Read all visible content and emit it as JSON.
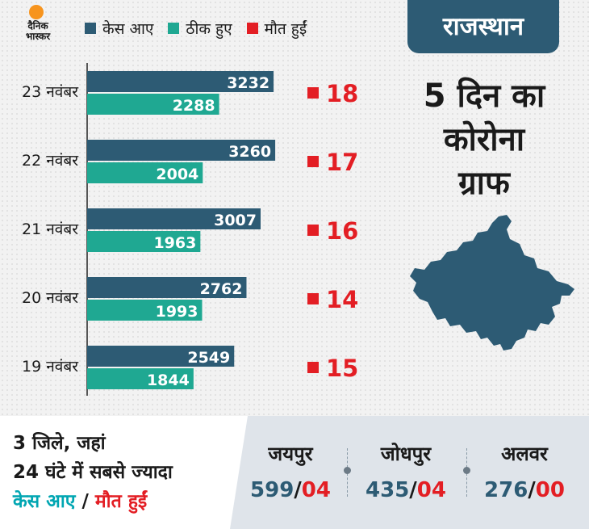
{
  "brand": {
    "logo_line1": "दैनिक",
    "logo_line2": "भास्कर"
  },
  "legend": [
    {
      "label": "केस आए",
      "color": "#2d5b74"
    },
    {
      "label": "ठीक हुए",
      "color": "#1fa892"
    },
    {
      "label": "मौत हुईं",
      "color": "#e31e24"
    }
  ],
  "state_tab": "राजस्थान",
  "headline": [
    "5 दिन का",
    "कोरोना",
    "ग्राफ"
  ],
  "chart_data": {
    "type": "bar",
    "orientation": "horizontal",
    "categories": [
      "23 नवंबर",
      "22 नवंबर",
      "21 नवंबर",
      "20 नवंबर",
      "19 नवंबर"
    ],
    "series": [
      {
        "name": "केस आए",
        "values": [
          3232,
          3260,
          3007,
          2762,
          2549
        ],
        "color": "#2d5b74"
      },
      {
        "name": "ठीक हुए",
        "values": [
          2288,
          2004,
          1963,
          1993,
          1844
        ],
        "color": "#1fa892"
      },
      {
        "name": "मौत हुईं",
        "values": [
          18,
          17,
          16,
          14,
          15
        ],
        "color": "#e31e24"
      }
    ],
    "title": "",
    "xlabel": "",
    "ylabel": ""
  },
  "bottom": {
    "line1": "3 जिले, जहां",
    "line2": "24 घंटे में सबसे ज्यादा",
    "line3_cases": "केस आए",
    "line3_sep": " / ",
    "line3_deaths": "मौत हुईं",
    "cities": [
      {
        "name": "जयपुर",
        "cases": "599",
        "deaths": "04"
      },
      {
        "name": "जोधपुर",
        "cases": "435",
        "deaths": "04"
      },
      {
        "name": "अलवर",
        "cases": "276",
        "deaths": "00"
      }
    ],
    "slash": "/"
  }
}
